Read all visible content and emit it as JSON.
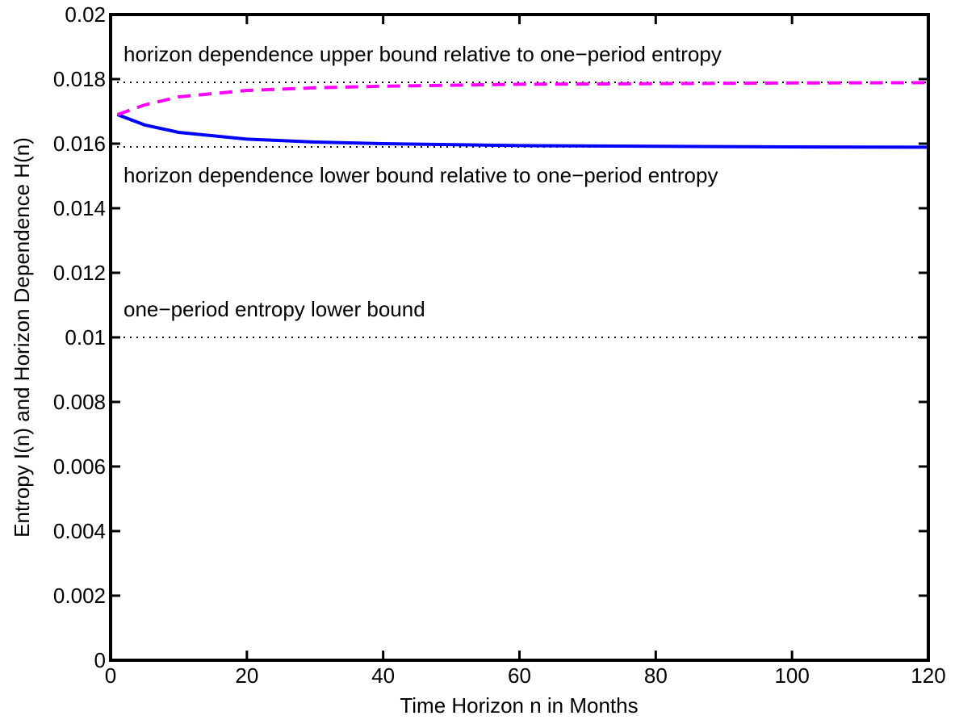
{
  "chart_data": {
    "type": "line",
    "xlabel": "Time Horizon n in Months",
    "ylabel": "Entropy I(n) and Horizon Dependence H(n)",
    "x": [
      1,
      5,
      10,
      20,
      30,
      40,
      60,
      80,
      100,
      120
    ],
    "series": [
      {
        "color": "#0000ff",
        "dash": "solid",
        "values": [
          0.0169,
          0.01658,
          0.01635,
          0.01614,
          0.01605,
          0.016,
          0.01594,
          0.01592,
          0.0159,
          0.01589
        ]
      },
      {
        "color": "#ff00ff",
        "dash": "dashed",
        "values": [
          0.0169,
          0.0172,
          0.01745,
          0.01765,
          0.01773,
          0.01778,
          0.01784,
          0.01786,
          0.01788,
          0.01789
        ]
      }
    ],
    "reference_lines": [
      0.0179,
      0.0159,
      0.01
    ],
    "annotations": [
      "horizon dependence upper bound relative to one−period entropy",
      "horizon dependence lower bound relative to one−period entropy",
      "one−period entropy lower bound"
    ],
    "xlim": [
      0,
      120
    ],
    "xticks": [
      0,
      20,
      40,
      60,
      80,
      100,
      120
    ],
    "ylim": [
      0,
      0.02
    ],
    "yticks": [
      0,
      0.002,
      0.004,
      0.006,
      0.008,
      0.01,
      0.012,
      0.014,
      0.016,
      0.018,
      0.02
    ],
    "grid": false
  }
}
